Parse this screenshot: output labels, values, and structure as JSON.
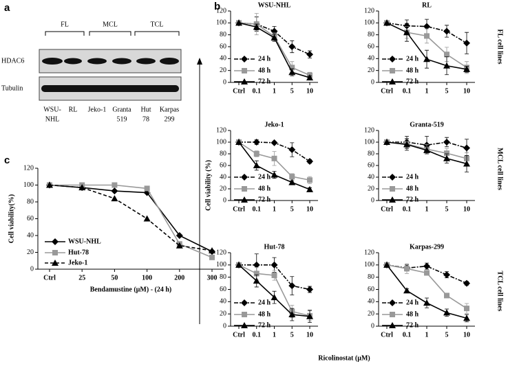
{
  "panel_a": {
    "letter": "a",
    "groups": [
      "FL",
      "MCL",
      "TCL"
    ],
    "rows": [
      "HDAC6",
      "Tubulin"
    ],
    "lanes": [
      [
        "WSU-",
        "NHL"
      ],
      [
        "RL"
      ],
      [
        "Jeko-1"
      ],
      [
        "Granta",
        "519"
      ],
      [
        "Hut",
        "78"
      ],
      [
        "Karpas",
        "299"
      ]
    ]
  },
  "panel_b": {
    "letter": "b",
    "ylabel": "Cell viability (%)",
    "xlabel": "Ricolinostat (µM)",
    "row_labels": [
      "FL cell lines",
      "MCL cell lines",
      "TCL cell lines"
    ]
  },
  "panel_c": {
    "letter": "c"
  },
  "chart_data": [
    {
      "type": "line",
      "title": "WSU-NHL",
      "categories": [
        "Ctrl",
        "0.1",
        "1",
        "5",
        "10"
      ],
      "ylim": [
        0,
        120
      ],
      "yticks": [
        0,
        20,
        40,
        60,
        80,
        100,
        120
      ],
      "series": [
        {
          "name": "24 h",
          "color": "#000000",
          "marker": "diamond",
          "line_style": "dashdot",
          "values": [
            100,
            98,
            86,
            60,
            47
          ],
          "errors": [
            0,
            12,
            8,
            10,
            6
          ]
        },
        {
          "name": "48 h",
          "color": "#999999",
          "marker": "square",
          "line_style": "solid",
          "values": [
            100,
            98,
            77,
            25,
            12
          ],
          "errors": [
            0,
            18,
            6,
            10,
            5
          ]
        },
        {
          "name": "72 h",
          "color": "#000000",
          "marker": "triangle",
          "line_style": "solid",
          "values": [
            100,
            93,
            75,
            17,
            8
          ],
          "errors": [
            0,
            5,
            6,
            6,
            3
          ]
        }
      ]
    },
    {
      "type": "line",
      "title": "RL",
      "categories": [
        "Ctrl",
        "0.1",
        "1",
        "5",
        "10"
      ],
      "ylim": [
        0,
        120
      ],
      "yticks": [
        0,
        20,
        40,
        60,
        80,
        100,
        120
      ],
      "series": [
        {
          "name": "24 h",
          "color": "#000000",
          "marker": "diamond",
          "line_style": "dashdot",
          "values": [
            100,
            95,
            94,
            86,
            66
          ],
          "errors": [
            0,
            10,
            12,
            10,
            18
          ]
        },
        {
          "name": "48 h",
          "color": "#999999",
          "marker": "square",
          "line_style": "solid",
          "values": [
            100,
            84,
            78,
            47,
            25
          ],
          "errors": [
            0,
            10,
            12,
            12,
            10
          ]
        },
        {
          "name": "72 h",
          "color": "#000000",
          "marker": "triangle",
          "line_style": "solid",
          "values": [
            100,
            84,
            39,
            28,
            22
          ],
          "errors": [
            0,
            15,
            15,
            15,
            5
          ]
        }
      ]
    },
    {
      "type": "line",
      "title": "Jeko-1",
      "categories": [
        "Ctrl",
        "0.1",
        "1",
        "5",
        "10"
      ],
      "ylim": [
        0,
        120
      ],
      "yticks": [
        0,
        20,
        40,
        60,
        80,
        100,
        120
      ],
      "series": [
        {
          "name": "24 h",
          "color": "#000000",
          "marker": "diamond",
          "line_style": "dashdot",
          "values": [
            100,
            100,
            99,
            87,
            67
          ],
          "errors": [
            0,
            4,
            2,
            12,
            3
          ]
        },
        {
          "name": "48 h",
          "color": "#999999",
          "marker": "square",
          "line_style": "solid",
          "values": [
            100,
            80,
            72,
            41,
            35
          ],
          "errors": [
            0,
            5,
            12,
            5,
            6
          ]
        },
        {
          "name": "72 h",
          "color": "#000000",
          "marker": "triangle",
          "line_style": "solid",
          "values": [
            100,
            60,
            44,
            31,
            19
          ],
          "errors": [
            0,
            8,
            6,
            3,
            3
          ]
        }
      ]
    },
    {
      "type": "line",
      "title": "Granta-519",
      "categories": [
        "Ctrl",
        "0.1",
        "1",
        "5",
        "10"
      ],
      "ylim": [
        0,
        120
      ],
      "yticks": [
        0,
        20,
        40,
        60,
        80,
        100,
        120
      ],
      "series": [
        {
          "name": "24 h",
          "color": "#000000",
          "marker": "diamond",
          "line_style": "dashdot",
          "values": [
            100,
            100,
            95,
            100,
            90
          ],
          "errors": [
            0,
            10,
            15,
            8,
            15
          ]
        },
        {
          "name": "48 h",
          "color": "#999999",
          "marker": "square",
          "line_style": "solid",
          "values": [
            100,
            97,
            88,
            81,
            72
          ],
          "errors": [
            0,
            8,
            8,
            8,
            10
          ]
        },
        {
          "name": "72 h",
          "color": "#000000",
          "marker": "triangle",
          "line_style": "solid",
          "values": [
            100,
            96,
            86,
            72,
            63
          ],
          "errors": [
            0,
            10,
            6,
            8,
            14
          ]
        }
      ]
    },
    {
      "type": "line",
      "title": "Hut-78",
      "categories": [
        "Ctrl",
        "0.1",
        "1",
        "5",
        "10"
      ],
      "ylim": [
        0,
        120
      ],
      "yticks": [
        0,
        20,
        40,
        60,
        80,
        100,
        120
      ],
      "series": [
        {
          "name": "24 h",
          "color": "#000000",
          "marker": "diamond",
          "line_style": "dashdot",
          "values": [
            100,
            100,
            100,
            66,
            60
          ],
          "errors": [
            0,
            18,
            12,
            15,
            5
          ]
        },
        {
          "name": "48 h",
          "color": "#999999",
          "marker": "square",
          "line_style": "solid",
          "values": [
            100,
            86,
            83,
            24,
            17
          ],
          "errors": [
            0,
            10,
            8,
            10,
            8
          ]
        },
        {
          "name": "72 h",
          "color": "#000000",
          "marker": "triangle",
          "line_style": "solid",
          "values": [
            100,
            74,
            47,
            19,
            16
          ],
          "errors": [
            0,
            10,
            10,
            10,
            10
          ]
        }
      ]
    },
    {
      "type": "line",
      "title": "Karpas-299",
      "categories": [
        "Ctrl",
        "0.1",
        "1",
        "5",
        "10"
      ],
      "ylim": [
        0,
        120
      ],
      "yticks": [
        0,
        20,
        40,
        60,
        80,
        100,
        120
      ],
      "series": [
        {
          "name": "24 h",
          "color": "#000000",
          "marker": "diamond",
          "line_style": "dashdot",
          "values": [
            100,
            95,
            98,
            84,
            70
          ],
          "errors": [
            0,
            5,
            5,
            5,
            3
          ]
        },
        {
          "name": "48 h",
          "color": "#999999",
          "marker": "square",
          "line_style": "solid",
          "values": [
            100,
            94,
            87,
            50,
            29
          ],
          "errors": [
            0,
            8,
            3,
            3,
            8
          ]
        },
        {
          "name": "72 h",
          "color": "#000000",
          "marker": "triangle",
          "line_style": "solid",
          "values": [
            100,
            58,
            38,
            22,
            13
          ],
          "errors": [
            0,
            3,
            8,
            6,
            6
          ]
        }
      ]
    },
    {
      "type": "line",
      "ylabel": "Cell viability(%)",
      "xlabel": "Bendamustine (µM) - (24 h)",
      "categories": [
        "Ctrl",
        "25",
        "50",
        "100",
        "200",
        "300"
      ],
      "ylim": [
        0,
        120
      ],
      "yticks": [
        0,
        20,
        40,
        60,
        80,
        100,
        120
      ],
      "series": [
        {
          "name": "WSU-NHL",
          "color": "#000000",
          "marker": "diamond",
          "line_style": "solid",
          "values": [
            100,
            97,
            93,
            91,
            40,
            21
          ]
        },
        {
          "name": "Hut-78",
          "color": "#999999",
          "marker": "square",
          "line_style": "solid",
          "values": [
            100,
            100,
            100,
            96,
            30,
            14
          ]
        },
        {
          "name": "Jeko-1",
          "color": "#000000",
          "marker": "triangle",
          "line_style": "dashed",
          "values": [
            100,
            97,
            84,
            60,
            28,
            22
          ]
        }
      ]
    }
  ]
}
